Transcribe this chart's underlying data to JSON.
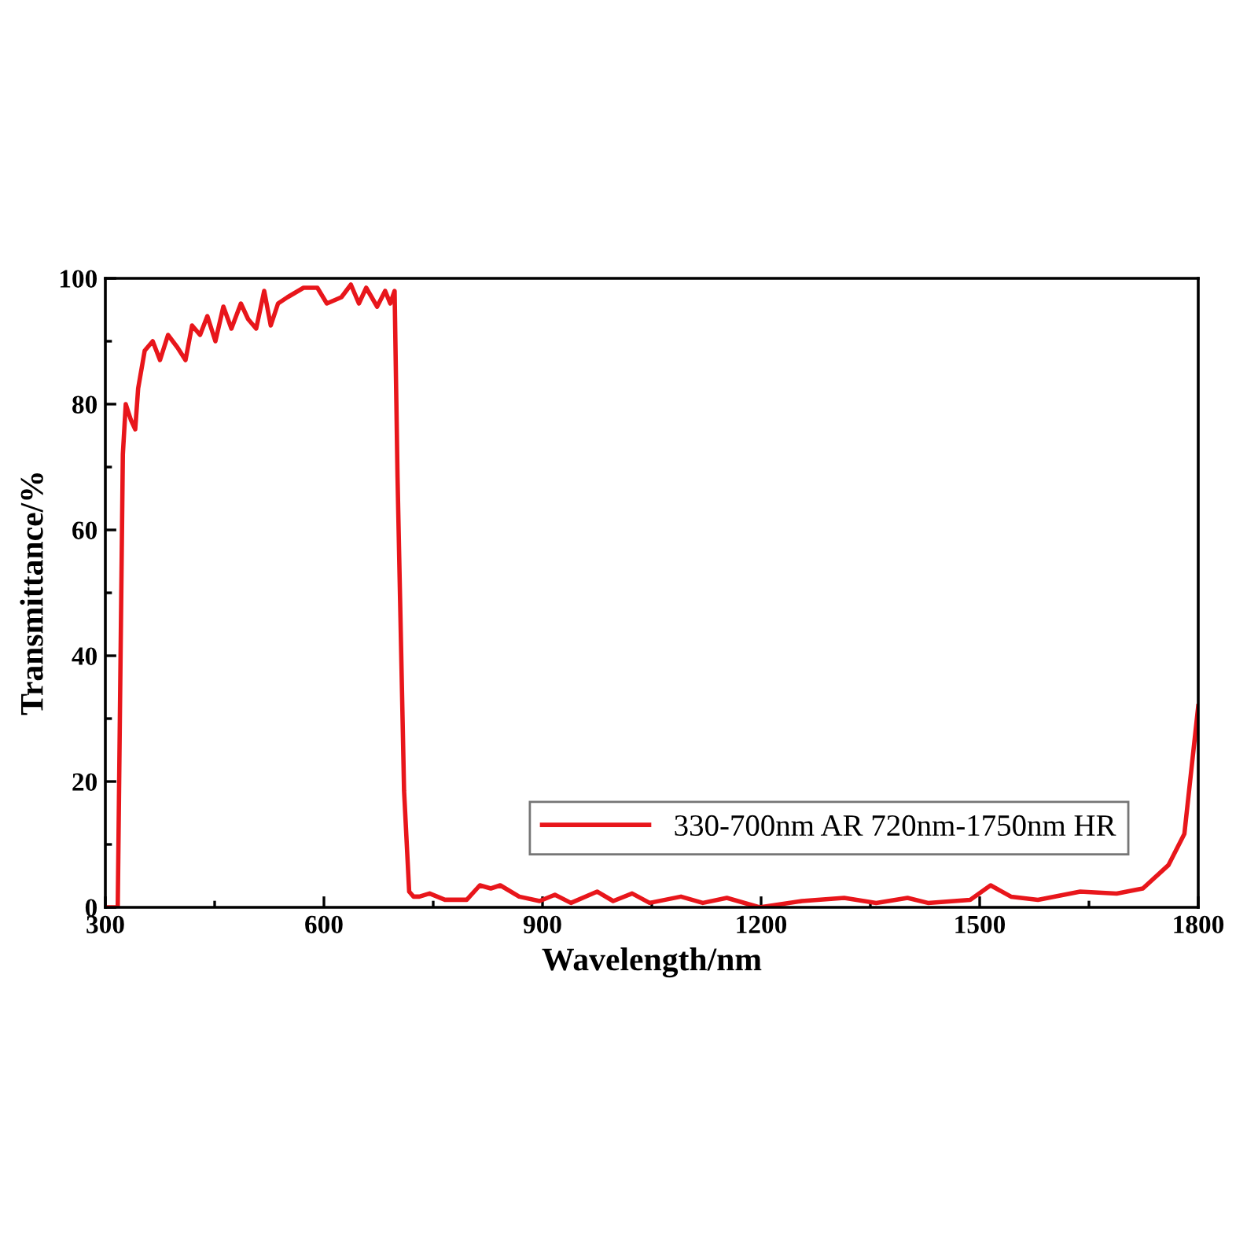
{
  "chart_data": {
    "type": "line",
    "xlabel": "Wavelength/nm",
    "ylabel": "Transmittance/%",
    "xlim": [
      300,
      1800
    ],
    "xticks": [
      300,
      600,
      900,
      1200,
      1500,
      1800
    ],
    "ylim": [
      0,
      100
    ],
    "yticks": [
      0,
      20,
      40,
      60,
      80,
      100
    ],
    "grid": false,
    "legend": "bottom right",
    "marker": "none",
    "line_style": "solid",
    "series": [
      {
        "name": "330-700nm AR 720nm-1750nm HR",
        "color": "#e8161b",
        "x": [
          300,
          317,
          324,
          328,
          335,
          341,
          345,
          354,
          365,
          375,
          386,
          399,
          410,
          419,
          430,
          440,
          451,
          462,
          473,
          486,
          496,
          507,
          518,
          527,
          537,
          550,
          572,
          591,
          604,
          624,
          637,
          648,
          658,
          673,
          684,
          691,
          697,
          701,
          710,
          717,
          723,
          731,
          745,
          766,
          796,
          814,
          829,
          842,
          868,
          896,
          917,
          939,
          975,
          997,
          1023,
          1047,
          1090,
          1120,
          1153,
          1198,
          1256,
          1314,
          1358,
          1401,
          1429,
          1487,
          1515,
          1543,
          1580,
          1638,
          1688,
          1724,
          1759,
          1781,
          1800
        ],
        "values": [
          0,
          0,
          72,
          80,
          77.5,
          76,
          82.5,
          88.5,
          90,
          87,
          91,
          89,
          87,
          92.5,
          91,
          94,
          90,
          95.5,
          92,
          96,
          93.5,
          92,
          98,
          92.5,
          96,
          97,
          98.5,
          98.5,
          96,
          97,
          99,
          96,
          98.5,
          95.5,
          98,
          96,
          98,
          68.5,
          18.5,
          2.5,
          1.7,
          1.7,
          2.2,
          1.2,
          1.2,
          3.5,
          3,
          3.5,
          1.7,
          1,
          2,
          0.7,
          2.5,
          1,
          2.2,
          0.7,
          1.7,
          0.7,
          1.5,
          0,
          1,
          1.5,
          0.7,
          1.5,
          0.7,
          1.2,
          3.5,
          1.7,
          1.2,
          2.5,
          2.2,
          3,
          6.7,
          11.7,
          32
        ]
      }
    ]
  }
}
